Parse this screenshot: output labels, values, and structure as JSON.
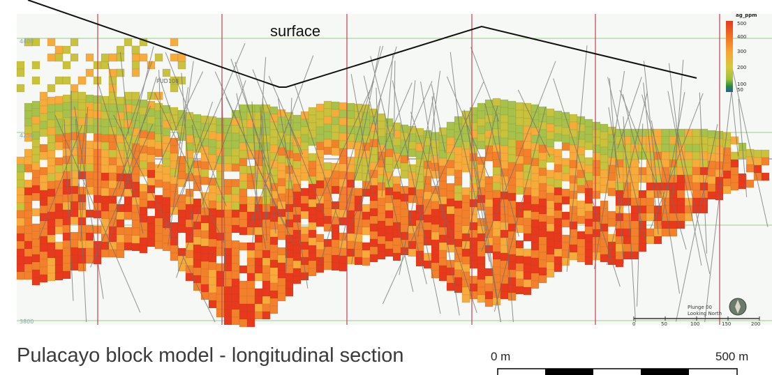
{
  "caption": "Pulacayo block model - longitudinal section",
  "surface_label": "surface",
  "legend": {
    "title": "ag_ppm",
    "ticks": [
      "500",
      "400",
      "300",
      "200",
      "100",
      "50"
    ],
    "colors": [
      "#e8391c",
      "#f27a22",
      "#f7a832",
      "#d8c83a",
      "#9cc23c",
      "#2a8a3c",
      "#1f5fb4"
    ]
  },
  "elevation_labels": [
    "4400",
    "4250",
    "3800"
  ],
  "drillhole_label": "PUD108",
  "north_arrow": {
    "line1": "Plunge 00",
    "line2": "Looking North"
  },
  "inner_scale": {
    "ticks": [
      "0",
      "50",
      "100",
      "150",
      "200"
    ]
  },
  "outer_scale": {
    "left": "0 m",
    "right": "500 m"
  },
  "colors": {
    "grade_high": "#e8391c",
    "grade_mid_high": "#f3802b",
    "grade_mid": "#f7ab3a",
    "grade_low": "#c9c23c",
    "grade_lowest": "#a7c24a",
    "background": "#ffffff",
    "section_lines": "#c04050",
    "grid_lines": "#9acb8a"
  }
}
